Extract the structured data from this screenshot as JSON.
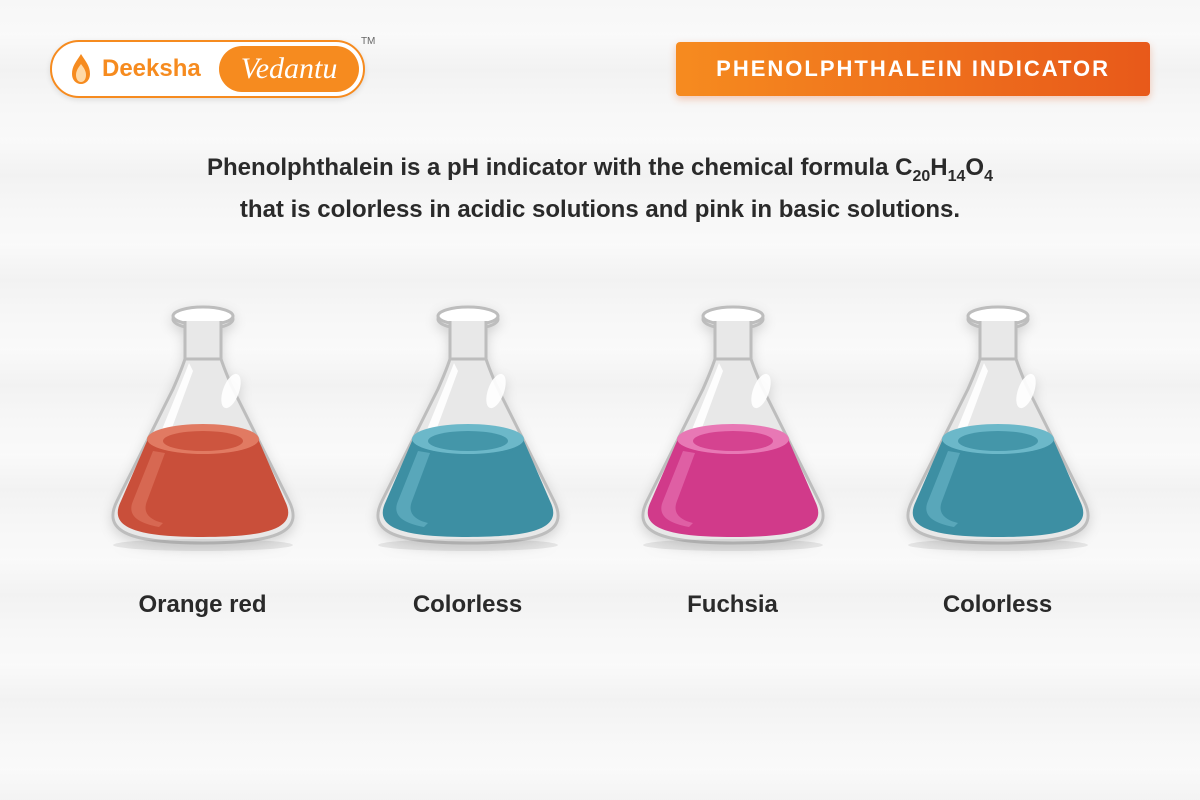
{
  "logo": {
    "brand1": "Deeksha",
    "brand2": "Vedantu",
    "tm": "TM",
    "brand1_color": "#f68b1f",
    "brand2_bg": "#f68b1f",
    "flame_color": "#f68b1f"
  },
  "title": "PHENOLPHTHALEIN INDICATOR",
  "title_gradient": [
    "#f68b1f",
    "#e8591a"
  ],
  "description": {
    "line1_pre": "Phenolphthalein is a pH indicator with the chemical formula C",
    "sub1": "20",
    "mid1": "H",
    "sub2": "14",
    "mid2": "O",
    "sub3": "4",
    "line2": "that is colorless in acidic solutions and pink in basic solutions."
  },
  "flasks": [
    {
      "label": "Orange red",
      "liquid_color": "#c94f3a",
      "liquid_highlight": "#e17a62"
    },
    {
      "label": "Colorless",
      "liquid_color": "#3d8fa3",
      "liquid_highlight": "#6cb8c9"
    },
    {
      "label": "Fuchsia",
      "liquid_color": "#d13a8a",
      "liquid_highlight": "#e878b5"
    },
    {
      "label": "Colorless",
      "liquid_color": "#3d8fa3",
      "liquid_highlight": "#6cb8c9"
    }
  ],
  "flask_glass_outline": "#bdbdbd",
  "flask_glass_fill": "#e8e8e8",
  "flask_glass_highlight": "#ffffff",
  "background_wave_colors": [
    "#f7f7f7",
    "#fafafa",
    "#f2f2f2"
  ]
}
